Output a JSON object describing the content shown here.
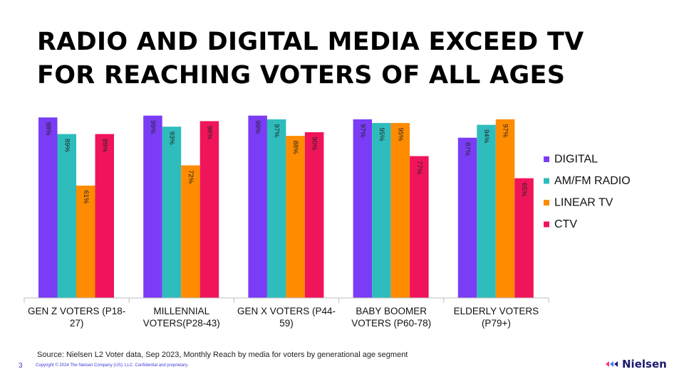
{
  "title_lines": [
    "RADIO AND DIGITAL MEDIA EXCEED TV",
    "FOR REACHING VOTERS OF ALL AGES"
  ],
  "source": "Source: Nielsen L2 Voter data, Sep 2023, Monthly Reach by media for voters by generational age segment",
  "page_number": "3",
  "copyright": "Copyright © 2024 The Nielsen Company (US), LLC. Confidential and proprietary.",
  "logo_text": "Nielsen",
  "colors": {
    "digital": "#7a3cf5",
    "radio": "#2fbcbc",
    "linear_tv": "#ff8c00",
    "ctv": "#f0145a"
  },
  "chart_data": {
    "type": "bar",
    "categories": [
      [
        "GEN Z VOTERS (P18-",
        "27)"
      ],
      [
        "MILLENNIAL",
        "VOTERS(P28-43)"
      ],
      [
        "GEN X VOTERS (P44-",
        "59)"
      ],
      [
        "BABY BOOMER",
        "VOTERS (P60-78)"
      ],
      [
        "ELDERLY VOTERS",
        "(P79+)"
      ]
    ],
    "series": [
      {
        "name": "DIGITAL",
        "color": "#7a3cf5",
        "values": [
          98,
          99,
          99,
          97,
          87
        ],
        "labels": [
          "98%",
          "99%",
          "99%",
          "97%",
          "87%"
        ]
      },
      {
        "name": "AM/FM RADIO",
        "color": "#2fbcbc",
        "values": [
          89,
          93,
          97,
          95,
          94
        ],
        "labels": [
          "89%",
          "93%",
          "97%",
          "95%",
          "94%"
        ]
      },
      {
        "name": "LINEAR TV",
        "color": "#ff8c00",
        "values": [
          61,
          72,
          88,
          95,
          97
        ],
        "labels": [
          "61%",
          "72%",
          "88%",
          "95%",
          "97%"
        ]
      },
      {
        "name": "CTV",
        "color": "#f0145a",
        "values": [
          89,
          96,
          90,
          77,
          65
        ],
        "labels": [
          "89%",
          "96%",
          "90%",
          "77%",
          "65%"
        ]
      }
    ],
    "ylim": [
      0,
      100
    ],
    "grid": false,
    "legend_position": "right"
  }
}
